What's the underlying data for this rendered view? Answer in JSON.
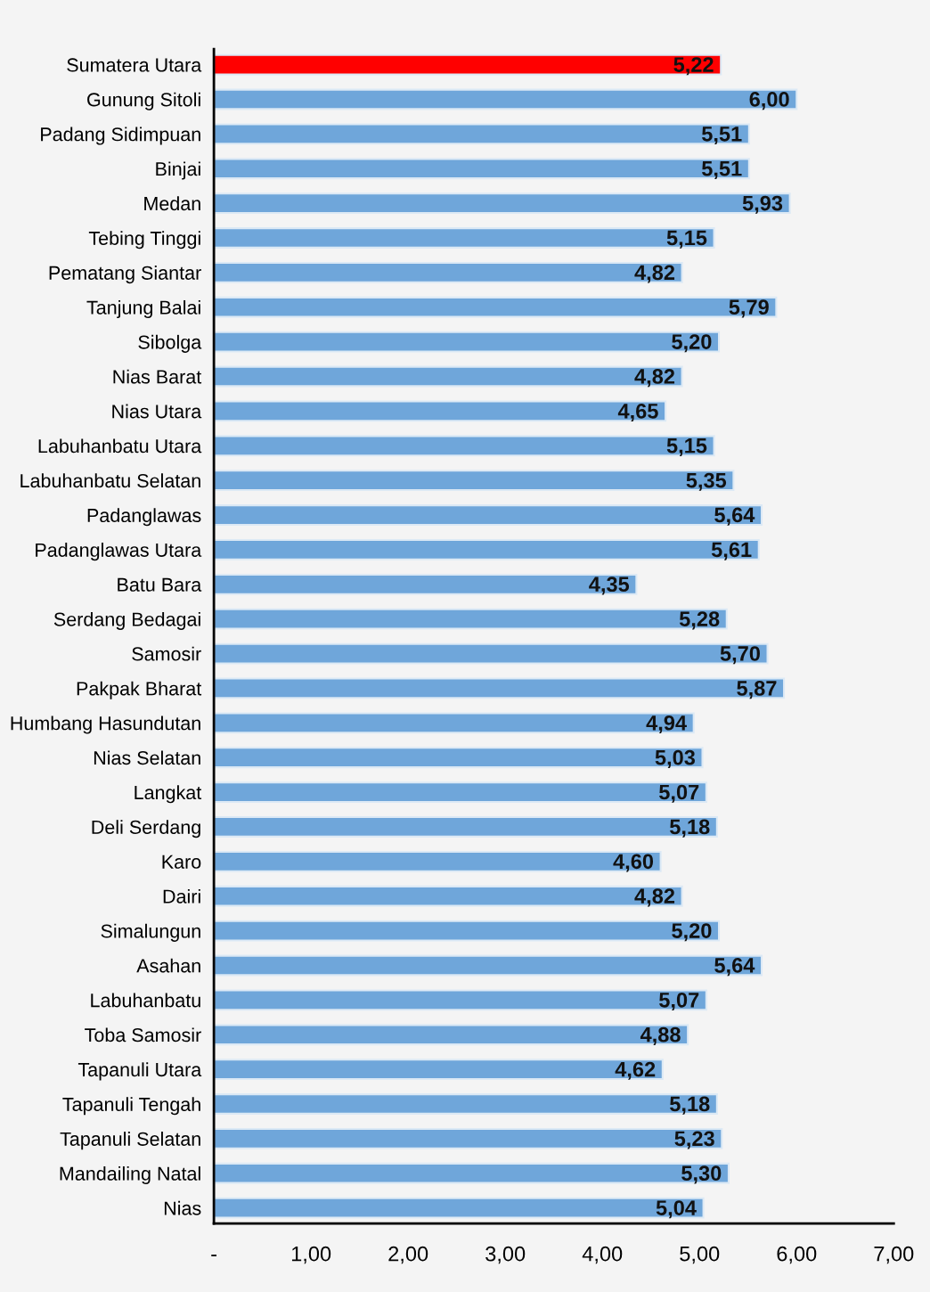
{
  "chart_data": {
    "type": "bar",
    "orientation": "horizontal",
    "categories": [
      "Sumatera Utara",
      "Gunung Sitoli",
      "Padang Sidimpuan",
      "Binjai",
      "Medan",
      "Tebing Tinggi",
      "Pematang Siantar",
      "Tanjung Balai",
      "Sibolga",
      "Nias Barat",
      "Nias Utara",
      "Labuhanbatu Utara",
      "Labuhanbatu Selatan",
      "Padanglawas",
      "Padanglawas Utara",
      "Batu Bara",
      "Serdang Bedagai",
      "Samosir",
      "Pakpak Bharat",
      "Humbang Hasundutan",
      "Nias Selatan",
      "Langkat",
      "Deli Serdang",
      "Karo",
      "Dairi",
      "Simalungun",
      "Asahan",
      "Labuhanbatu",
      "Toba Samosir",
      "Tapanuli Utara",
      "Tapanuli Tengah",
      "Tapanuli Selatan",
      "Mandailing Natal",
      "Nias"
    ],
    "values": [
      5.22,
      6.0,
      5.51,
      5.51,
      5.93,
      5.15,
      4.82,
      5.79,
      5.2,
      4.82,
      4.65,
      5.15,
      5.35,
      5.64,
      5.61,
      4.35,
      5.28,
      5.7,
      5.87,
      4.94,
      5.03,
      5.07,
      5.18,
      4.6,
      4.82,
      5.2,
      5.64,
      5.07,
      4.88,
      4.62,
      5.18,
      5.23,
      5.3,
      5.04
    ],
    "value_labels": [
      "5,22",
      "6,00",
      "5,51",
      "5,51",
      "5,93",
      "5,15",
      "4,82",
      "5,79",
      "5,20",
      "4,82",
      "4,65",
      "5,15",
      "5,35",
      "5,64",
      "5,61",
      "4,35",
      "5,28",
      "5,70",
      "5,87",
      "4,94",
      "5,03",
      "5,07",
      "5,18",
      "4,60",
      "4,82",
      "5,20",
      "5,64",
      "5,07",
      "4,88",
      "4,62",
      "5,18",
      "5,23",
      "5,30",
      "5,04"
    ],
    "colors": [
      "#ff0000",
      "#6fa6da",
      "#6fa6da",
      "#6fa6da",
      "#6fa6da",
      "#6fa6da",
      "#6fa6da",
      "#6fa6da",
      "#6fa6da",
      "#6fa6da",
      "#6fa6da",
      "#6fa6da",
      "#6fa6da",
      "#6fa6da",
      "#6fa6da",
      "#6fa6da",
      "#6fa6da",
      "#6fa6da",
      "#6fa6da",
      "#6fa6da",
      "#6fa6da",
      "#6fa6da",
      "#6fa6da",
      "#6fa6da",
      "#6fa6da",
      "#6fa6da",
      "#6fa6da",
      "#6fa6da",
      "#6fa6da",
      "#6fa6da",
      "#6fa6da",
      "#6fa6da",
      "#6fa6da",
      "#6fa6da"
    ],
    "xlim": [
      0,
      7
    ],
    "xticks": [
      {
        "value": 0,
        "label": "-"
      },
      {
        "value": 1,
        "label": "1,00"
      },
      {
        "value": 2,
        "label": "2,00"
      },
      {
        "value": 3,
        "label": "3,00"
      },
      {
        "value": 4,
        "label": "4,00"
      },
      {
        "value": 5,
        "label": "5,00"
      },
      {
        "value": 6,
        "label": "6,00"
      },
      {
        "value": 7,
        "label": "7,00"
      }
    ],
    "grid": false,
    "legend": false
  }
}
